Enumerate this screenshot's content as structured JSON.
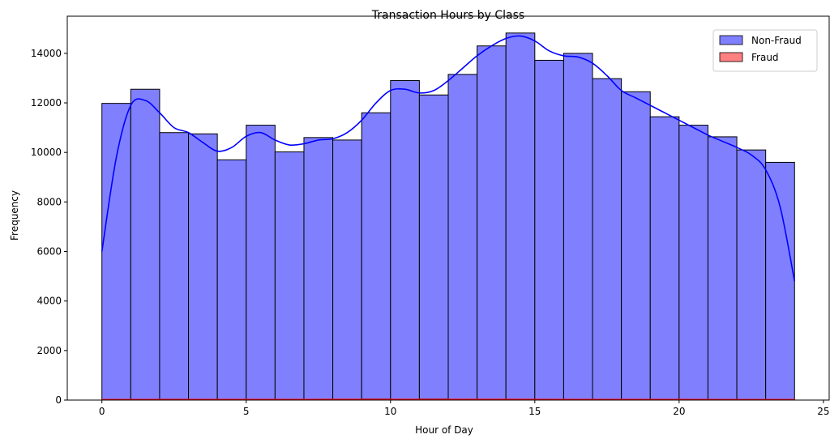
{
  "chart_data": {
    "type": "bar",
    "title": "Transaction Hours by Class",
    "xlabel": "Hour of Day",
    "ylabel": "Frequency",
    "xlim": [
      -1.2,
      25.2
    ],
    "ylim": [
      0,
      15500
    ],
    "xticks": [
      0,
      5,
      10,
      15,
      20,
      25
    ],
    "yticks": [
      0,
      2000,
      4000,
      6000,
      8000,
      10000,
      12000,
      14000
    ],
    "grid": false,
    "legend_position": "top-right",
    "bin_edges": [
      0,
      1,
      2,
      3,
      4,
      5,
      6,
      7,
      8,
      9,
      10,
      11,
      12,
      13,
      14,
      15,
      16,
      17,
      18,
      19,
      20,
      21,
      22,
      23,
      24
    ],
    "series": [
      {
        "name": "Non-Fraud",
        "color": "#0000ff",
        "values": [
          11980,
          12550,
          10800,
          10750,
          9700,
          11100,
          10020,
          10600,
          10500,
          11600,
          12900,
          12320,
          13150,
          14300,
          14820,
          13720,
          14000,
          12980,
          12450,
          11440,
          11100,
          10630,
          10100,
          9600
        ],
        "kde": {
          "x": [
            0,
            0.5,
            1,
            1.5,
            2,
            2.5,
            3,
            3.5,
            4,
            4.5,
            5,
            5.5,
            6,
            6.5,
            7,
            7.5,
            8,
            8.5,
            9,
            9.5,
            10,
            10.5,
            11,
            11.5,
            12,
            12.5,
            13,
            13.5,
            14,
            14.5,
            15,
            15.5,
            16,
            16.5,
            17,
            17.5,
            18,
            18.5,
            19,
            19.5,
            20,
            20.5,
            21,
            21.5,
            22,
            22.5,
            23,
            23.5,
            24
          ],
          "y": [
            6000,
            9800,
            11900,
            12100,
            11600,
            11000,
            10800,
            10400,
            10050,
            10200,
            10650,
            10800,
            10500,
            10300,
            10350,
            10500,
            10550,
            10800,
            11300,
            12000,
            12500,
            12550,
            12400,
            12500,
            12900,
            13400,
            13900,
            14300,
            14600,
            14700,
            14500,
            14100,
            13900,
            13850,
            13600,
            13100,
            12500,
            12200,
            11900,
            11600,
            11300,
            11000,
            10700,
            10450,
            10200,
            9900,
            9300,
            7800,
            4800
          ]
        }
      },
      {
        "name": "Fraud",
        "color": "#ff0000",
        "values": [
          18,
          14,
          40,
          20,
          22,
          15,
          18,
          14,
          23,
          45,
          32,
          45,
          22,
          20,
          23,
          24,
          20,
          26,
          30,
          23,
          20,
          25,
          20,
          18
        ],
        "kde": {
          "x": [
            0,
            4,
            8,
            12,
            16,
            20,
            24
          ],
          "y": [
            20,
            22,
            25,
            28,
            24,
            22,
            18
          ]
        }
      }
    ]
  }
}
